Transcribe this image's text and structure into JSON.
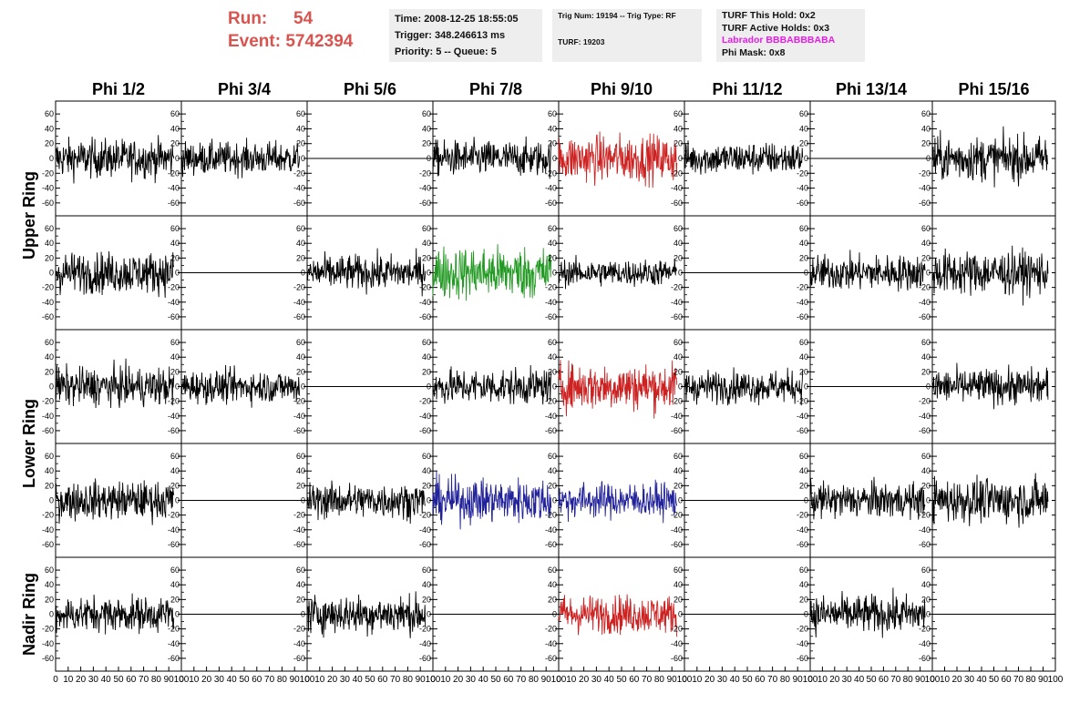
{
  "header": {
    "run_label": "Run:",
    "run_value": "54",
    "event_label": "Event:",
    "event_value": "5742394",
    "info1": [
      "Time: 2008-12-25 18:55:05",
      "Trigger: 348.246613 ms",
      "Priority: 5 -- Queue: 5"
    ],
    "info2": [
      "Trig Num: 19194 -- Trig Type: RF",
      "TURF: 19203"
    ],
    "info3": [
      "TURF This Hold: 0x2",
      "TURF Active Holds: 0x3",
      "Labrador BBBABBBABA",
      "Phi Mask: 0x8"
    ]
  },
  "colors": {
    "title_red": "#d9534f",
    "magenta": "#e81ce8",
    "trace_black": "#000000",
    "trace_red": "#cc2222",
    "trace_green": "#229922",
    "trace_blue": "#22229a"
  },
  "chart_data": {
    "type": "line",
    "columns": [
      "Phi 1/2",
      "Phi 3/4",
      "Phi 5/6",
      "Phi 7/8",
      "Phi 9/10",
      "Phi 11/12",
      "Phi 13/14",
      "Phi 15/16"
    ],
    "rows": [
      "Upper Ring",
      "Lower Ring",
      "Nadir Ring"
    ],
    "ylim": [
      -70,
      70
    ],
    "yticks": [
      -60,
      -40,
      -20,
      0,
      20,
      40,
      60
    ],
    "xlim": [
      0,
      100
    ],
    "xticks": [
      0,
      10,
      20,
      30,
      40,
      50,
      60,
      70,
      80,
      90,
      100
    ],
    "grid": false,
    "panels": [
      [
        {
          "trace": "noise",
          "color": "black",
          "amp": 13
        },
        {
          "trace": "noise",
          "color": "black",
          "amp": 11
        },
        {
          "trace": "flat",
          "color": "black",
          "amp": 0
        },
        {
          "trace": "noise",
          "color": "black",
          "amp": 12
        },
        {
          "trace": "noise",
          "color": "red",
          "amp": 16
        },
        {
          "trace": "noise",
          "color": "black",
          "amp": 11
        },
        {
          "trace": "flat",
          "color": "black",
          "amp": 0
        },
        {
          "trace": "noise",
          "color": "black",
          "amp": 15
        }
      ],
      [
        {
          "trace": "noise",
          "color": "black",
          "amp": 14
        },
        {
          "trace": "flat",
          "color": "black",
          "amp": 0
        },
        {
          "trace": "noise",
          "color": "black",
          "amp": 12
        },
        {
          "trace": "noise",
          "color": "green",
          "amp": 18
        },
        {
          "trace": "noise",
          "color": "black",
          "amp": 9
        },
        {
          "trace": "flat",
          "color": "black",
          "amp": 0
        },
        {
          "trace": "noise",
          "color": "black",
          "amp": 12
        },
        {
          "trace": "noise",
          "color": "black",
          "amp": 15
        }
      ],
      [
        {
          "trace": "noise",
          "color": "black",
          "amp": 13
        },
        {
          "trace": "noise",
          "color": "black",
          "amp": 11
        },
        {
          "trace": "flat",
          "color": "black",
          "amp": 0
        },
        {
          "trace": "noise",
          "color": "black",
          "amp": 12
        },
        {
          "trace": "noise",
          "color": "red",
          "amp": 16
        },
        {
          "trace": "noise",
          "color": "black",
          "amp": 11
        },
        {
          "trace": "flat",
          "color": "black",
          "amp": 0
        },
        {
          "trace": "noise",
          "color": "black",
          "amp": 12
        }
      ],
      [
        {
          "trace": "noise",
          "color": "black",
          "amp": 13
        },
        {
          "trace": "flat",
          "color": "black",
          "amp": 0
        },
        {
          "trace": "noise",
          "color": "black",
          "amp": 12
        },
        {
          "trace": "noise",
          "color": "blue",
          "amp": 15
        },
        {
          "trace": "noise",
          "color": "blue",
          "amp": 12
        },
        {
          "trace": "flat",
          "color": "black",
          "amp": 0
        },
        {
          "trace": "noise",
          "color": "black",
          "amp": 12
        },
        {
          "trace": "noise",
          "color": "black",
          "amp": 15
        }
      ],
      [
        {
          "trace": "noise",
          "color": "black",
          "amp": 12
        },
        {
          "trace": "flat",
          "color": "black",
          "amp": 0
        },
        {
          "trace": "noise",
          "color": "black",
          "amp": 13
        },
        {
          "trace": "flat",
          "color": "black",
          "amp": 0
        },
        {
          "trace": "noise",
          "color": "red",
          "amp": 13
        },
        {
          "trace": "flat",
          "color": "black",
          "amp": 0
        },
        {
          "trace": "noise",
          "color": "black",
          "amp": 13
        },
        {
          "trace": "flat",
          "color": "black",
          "amp": 0
        }
      ]
    ]
  }
}
